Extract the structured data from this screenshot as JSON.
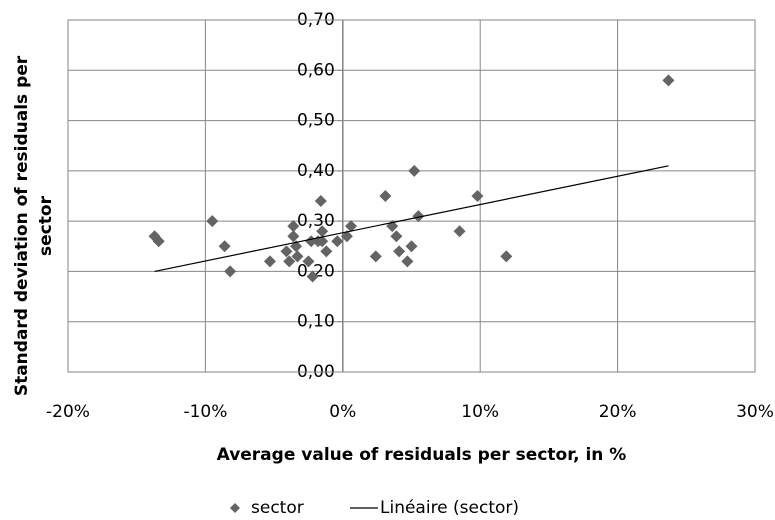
{
  "chart_data": {
    "type": "scatter",
    "x_label": "Average value of residuals per sector, in %",
    "y_label": [
      "Standard deviation of residuals per",
      "sector"
    ],
    "series": [
      {
        "name": "sector",
        "color": "#646464",
        "x": [
          -13.7,
          -13.4,
          -9.5,
          -8.6,
          -8.2,
          -5.3,
          -4.1,
          -3.9,
          -3.6,
          -3.6,
          -3.4,
          -3.3,
          -2.5,
          -2.3,
          -2.2,
          -1.8,
          -1.6,
          -1.5,
          -1.5,
          -1.2,
          -0.4,
          0.3,
          0.6,
          2.4,
          3.1,
          3.6,
          3.9,
          4.1,
          4.7,
          5.0,
          5.2,
          5.5,
          8.5,
          9.8,
          11.9,
          23.7
        ],
        "values": [
          0.27,
          0.26,
          0.3,
          0.25,
          0.2,
          0.22,
          0.24,
          0.22,
          0.27,
          0.29,
          0.25,
          0.23,
          0.22,
          0.26,
          0.19,
          0.26,
          0.34,
          0.28,
          0.26,
          0.24,
          0.26,
          0.27,
          0.29,
          0.23,
          0.35,
          0.29,
          0.27,
          0.24,
          0.22,
          0.25,
          0.4,
          0.31,
          0.28,
          0.35,
          0.23,
          0.58
        ]
      },
      {
        "name": "Linéaire (sector)",
        "color": "#000000",
        "type": "line",
        "x": [
          -13.7,
          23.7
        ],
        "values": [
          0.2,
          0.41
        ]
      }
    ],
    "xlim": [
      -20,
      30
    ],
    "xticks": [
      {
        "value": -20,
        "label": "-20%"
      },
      {
        "value": -10,
        "label": "-10%"
      },
      {
        "value": 0,
        "label": "0%"
      },
      {
        "value": 10,
        "label": "10%"
      },
      {
        "value": 20,
        "label": "20%"
      },
      {
        "value": 30,
        "label": "30%"
      }
    ],
    "ylim": [
      0,
      0.7
    ],
    "yticks": [
      {
        "value": 0,
        "label": "0,00"
      },
      {
        "value": 0.1,
        "label": "0,10"
      },
      {
        "value": 0.2,
        "label": "0,20"
      },
      {
        "value": 0.3,
        "label": "0,30"
      },
      {
        "value": 0.4,
        "label": "0,40"
      },
      {
        "value": 0.5,
        "label": "0,50"
      },
      {
        "value": 0.6,
        "label": "0,60"
      },
      {
        "value": 0.7,
        "label": "0,70"
      }
    ],
    "grid": true,
    "legend": "bottom"
  }
}
